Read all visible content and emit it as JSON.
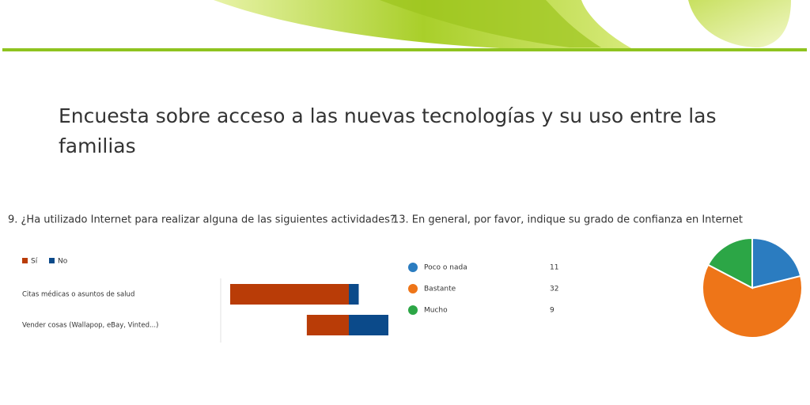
{
  "header": {
    "title": "Encuesta sobre acceso a las nuevas tecnologías y su uso entre las familias"
  },
  "chart_data": [
    {
      "type": "bar",
      "title": "9.  ¿Ha utilizado Internet para realizar alguna de las siguientes actividades?",
      "categories": [
        "Citas médicas o asuntos de salud",
        "Vender cosas (Wallapop, eBay, Vinted...)"
      ],
      "series": [
        {
          "name": "Sí",
          "color": "#b93c07",
          "values": [
            48,
            17
          ]
        },
        {
          "name": "No",
          "color": "#0b4a8a",
          "values": [
            4,
            16
          ]
        }
      ],
      "legend": "top-left"
    },
    {
      "type": "pie",
      "title": "13.  En general, por favor, indique su grado de confianza en Internet",
      "categories": [
        "Poco o nada",
        "Bastante",
        "Mucho"
      ],
      "values": [
        11,
        32,
        9
      ],
      "colors": [
        "#2b7cc0",
        "#ee7518",
        "#2ca646"
      ]
    }
  ]
}
